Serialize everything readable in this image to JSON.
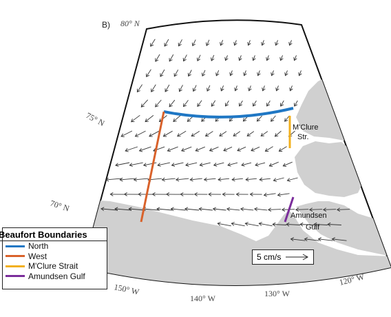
{
  "panel_label": "B)",
  "graticule": {
    "lat_80": "80° N",
    "lat_75": "75° N",
    "lat_70": "70° N",
    "lon_150": "150° W",
    "lon_140": "140° W",
    "lon_130": "130° W",
    "lon_120": "120° W"
  },
  "place_labels": {
    "mclure_line1": "M'Clure",
    "mclure_line2": "Str.",
    "amundsen_line1": "Amundsen",
    "amundsen_line2": "Gulf"
  },
  "legend": {
    "title": "Beaufort Boundaries",
    "items": [
      {
        "label": "North",
        "color": "#1f77c4"
      },
      {
        "label": "West",
        "color": "#d9622b"
      },
      {
        "label": "M'Clure Strait",
        "color": "#f2b01e"
      },
      {
        "label": "Amundsen Gulf",
        "color": "#7b2d9b"
      }
    ]
  },
  "scale": {
    "label": "5 cm/s"
  },
  "colors": {
    "land": "#d0d0d0",
    "ocean": "#ffffff",
    "arrow": "#333333"
  }
}
